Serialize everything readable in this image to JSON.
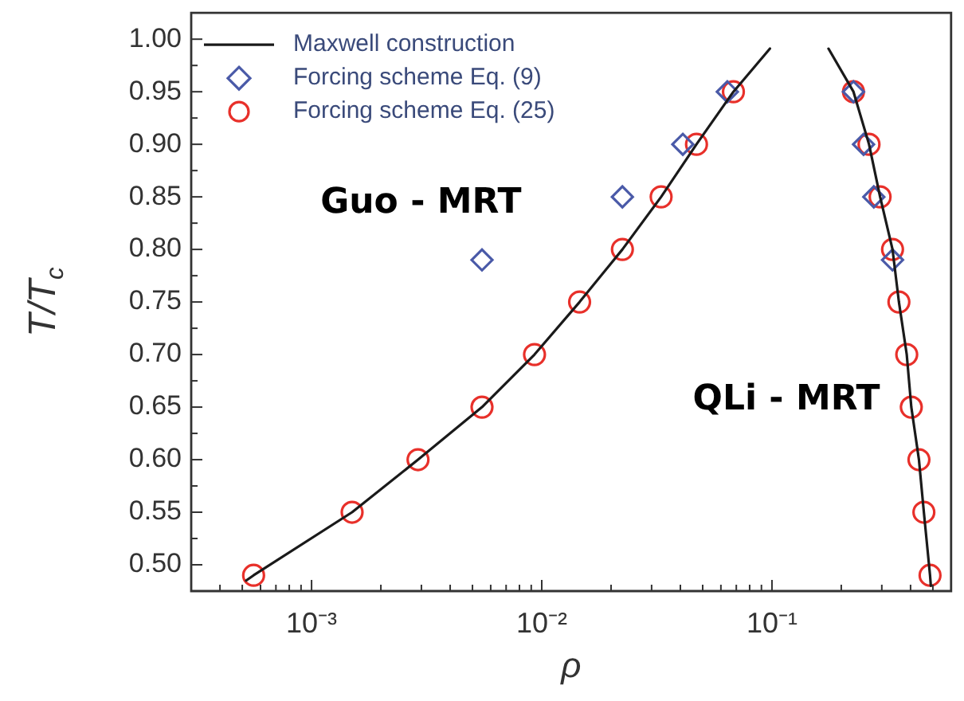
{
  "chart_data": {
    "type": "scatter",
    "xlabel": "ρ",
    "ylabel": "T/T$_{c}$",
    "log": "x",
    "grid": false,
    "legend": "top left",
    "xlim": [
      0.0003,
      0.6
    ],
    "ylim": [
      0.475,
      1.025
    ],
    "xticks": [
      {
        "value": 0.0003,
        "label": null
      },
      {
        "value": 0.0004,
        "label": null
      },
      {
        "value": 0.0005,
        "label": null
      },
      {
        "value": 0.0006,
        "label": null
      },
      {
        "value": 0.0007,
        "label": null
      },
      {
        "value": 0.0008,
        "label": null
      },
      {
        "value": 0.0009,
        "label": null
      },
      {
        "value": 0.001,
        "label": "10⁻³"
      },
      {
        "value": 0.002,
        "label": null
      },
      {
        "value": 0.003,
        "label": null
      },
      {
        "value": 0.004,
        "label": null
      },
      {
        "value": 0.005,
        "label": null
      },
      {
        "value": 0.006,
        "label": null
      },
      {
        "value": 0.007,
        "label": null
      },
      {
        "value": 0.008,
        "label": null
      },
      {
        "value": 0.009,
        "label": null
      },
      {
        "value": 0.01,
        "label": "10⁻²"
      },
      {
        "value": 0.02,
        "label": null
      },
      {
        "value": 0.03,
        "label": null
      },
      {
        "value": 0.04,
        "label": null
      },
      {
        "value": 0.05,
        "label": null
      },
      {
        "value": 0.06,
        "label": null
      },
      {
        "value": 0.07,
        "label": null
      },
      {
        "value": 0.08,
        "label": null
      },
      {
        "value": 0.09,
        "label": null
      },
      {
        "value": 0.1,
        "label": "10⁻¹"
      },
      {
        "value": 0.2,
        "label": null
      },
      {
        "value": 0.3,
        "label": null
      },
      {
        "value": 0.4,
        "label": null
      },
      {
        "value": 0.5,
        "label": null
      }
    ],
    "yticks": [
      {
        "value": 0.5,
        "label": "0.50"
      },
      {
        "value": 0.525,
        "label": null
      },
      {
        "value": 0.55,
        "label": "0.55"
      },
      {
        "value": 0.575,
        "label": null
      },
      {
        "value": 0.6,
        "label": "0.60"
      },
      {
        "value": 0.625,
        "label": null
      },
      {
        "value": 0.65,
        "label": "0.65"
      },
      {
        "value": 0.675,
        "label": null
      },
      {
        "value": 0.7,
        "label": "0.70"
      },
      {
        "value": 0.725,
        "label": null
      },
      {
        "value": 0.75,
        "label": "0.75"
      },
      {
        "value": 0.775,
        "label": null
      },
      {
        "value": 0.8,
        "label": "0.80"
      },
      {
        "value": 0.825,
        "label": null
      },
      {
        "value": 0.85,
        "label": "0.85"
      },
      {
        "value": 0.875,
        "label": null
      },
      {
        "value": 0.9,
        "label": "0.90"
      },
      {
        "value": 0.925,
        "label": null
      },
      {
        "value": 0.95,
        "label": "0.95"
      },
      {
        "value": 0.975,
        "label": null
      },
      {
        "value": 1.0,
        "label": "1.00"
      }
    ],
    "annotations": [
      "Guo - MRT",
      "QLi - MRT"
    ],
    "series": [
      {
        "name": "Maxwell construction",
        "type": "line",
        "marker": "none",
        "line_style": "solid",
        "color": "#1a1a1a",
        "x": [
          0.00052,
          0.00056,
          0.0015,
          0.0029,
          0.0055,
          0.0093,
          0.0146,
          0.0224,
          0.033,
          0.047,
          0.068,
          0.098,
          null,
          0.176,
          0.226,
          0.264,
          0.295,
          0.334,
          0.356,
          0.385,
          0.403,
          0.435,
          0.457,
          0.486,
          0.49
        ],
        "values": [
          0.485,
          0.49,
          0.55,
          0.6,
          0.65,
          0.7,
          0.75,
          0.8,
          0.85,
          0.9,
          0.95,
          0.991,
          null,
          0.991,
          0.95,
          0.9,
          0.85,
          0.8,
          0.75,
          0.7,
          0.65,
          0.6,
          0.55,
          0.49,
          0.48
        ]
      },
      {
        "name": "Forcing scheme Eq. (9)",
        "marker": "diamond",
        "color": "#4a5aa8",
        "x": [
          0.0055,
          0.0224,
          0.041,
          0.064,
          0.226,
          0.25,
          0.277,
          0.334
        ],
        "values": [
          0.79,
          0.85,
          0.9,
          0.95,
          0.95,
          0.9,
          0.85,
          0.79
        ]
      },
      {
        "name": "Forcing scheme Eq. (25)",
        "marker": "circle",
        "color": "#e8302a",
        "x": [
          0.00056,
          0.0015,
          0.0029,
          0.0055,
          0.0093,
          0.0146,
          0.0224,
          0.033,
          0.047,
          0.068,
          0.226,
          0.264,
          0.295,
          0.334,
          0.356,
          0.385,
          0.403,
          0.435,
          0.457,
          0.486
        ],
        "values": [
          0.49,
          0.55,
          0.6,
          0.65,
          0.7,
          0.75,
          0.8,
          0.85,
          0.9,
          0.95,
          0.95,
          0.9,
          0.85,
          0.8,
          0.75,
          0.7,
          0.65,
          0.6,
          0.55,
          0.49
        ]
      }
    ]
  }
}
